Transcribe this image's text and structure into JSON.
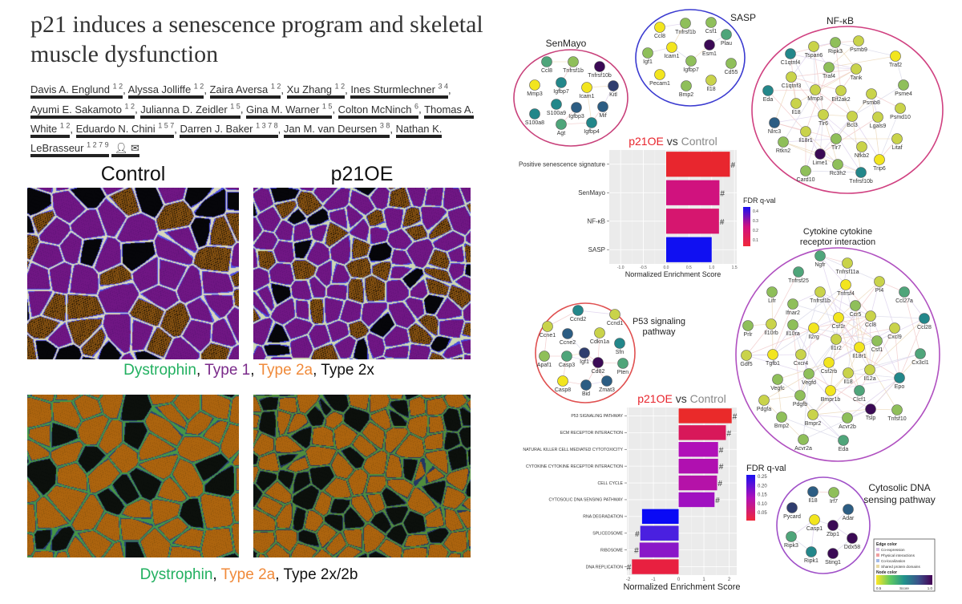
{
  "paper": {
    "title": "p21 induces a senescence program and skeletal muscle dysfunction",
    "authors": [
      {
        "name": "Davis A. Englund",
        "sup": "1 2"
      },
      {
        "name": "Alyssa Jolliffe",
        "sup": "1 2"
      },
      {
        "name": "Zaira Aversa",
        "sup": "1 2"
      },
      {
        "name": "Xu Zhang",
        "sup": "1 2"
      },
      {
        "name": "Ines Sturmlechner",
        "sup": "3 4"
      },
      {
        "name": "Ayumi E. Sakamoto",
        "sup": "1 2"
      },
      {
        "name": "Julianna D. Zeidler",
        "sup": "1 5"
      },
      {
        "name": "Gina M. Warner",
        "sup": "1 5"
      },
      {
        "name": "Colton McNinch",
        "sup": "6"
      },
      {
        "name": "Thomas A. White",
        "sup": "1 2"
      },
      {
        "name": "Eduardo N. Chini",
        "sup": "1 5 7"
      },
      {
        "name": "Darren J. Baker",
        "sup": "1 3 7 8"
      },
      {
        "name": "Jan M. van Deursen",
        "sup": "3 8"
      },
      {
        "name": "Nathan K. LeBrasseur",
        "sup": "1 2 7 9"
      }
    ],
    "author_icons": [
      "person-icon",
      "envelope-icon"
    ]
  },
  "micrographs": {
    "control_label": "Control",
    "p21oe_label": "p21OE",
    "legend_top": [
      {
        "text": "Dystrophin",
        "color": "#22b060"
      },
      {
        "text": ", ",
        "color": "#111"
      },
      {
        "text": "Type 1",
        "color": "#7a2a8a"
      },
      {
        "text": ", ",
        "color": "#111"
      },
      {
        "text": "Type 2a",
        "color": "#f08a3a"
      },
      {
        "text": ", Type 2x",
        "color": "#111"
      }
    ],
    "legend_bottom": [
      {
        "text": "Dystrophin",
        "color": "#22b060"
      },
      {
        "text": ", ",
        "color": "#111"
      },
      {
        "text": "Type 2a",
        "color": "#f08a3a"
      },
      {
        "text": ", Type 2x/2b",
        "color": "#111"
      }
    ]
  },
  "node_colors": {
    "Y": "#f2e51e",
    "YG": "#c9d34a",
    "LG": "#8fbf5a",
    "G": "#4fa57a",
    "T": "#23878a",
    "B": "#2c5d83",
    "N": "#2f3d6e",
    "P": "#3b0a55"
  },
  "networks": {
    "senmayo": {
      "title": "SenMayo",
      "ring": "#c8407a",
      "nodes": [
        [
          "Ccl8",
          "G"
        ],
        [
          "Tnfrsf1b",
          "LG"
        ],
        [
          "Tnfrsf10b",
          "P"
        ],
        [
          "Mmp3",
          "Y"
        ],
        [
          "Igfbp7",
          "T"
        ],
        [
          "Icam1",
          "Y"
        ],
        [
          "Kitl",
          "N"
        ],
        [
          "S100a9",
          "T"
        ],
        [
          "Igfbp3",
          "B"
        ],
        [
          "Mif",
          "B"
        ],
        [
          "S100a8",
          "T"
        ],
        [
          "Agt",
          "G"
        ],
        [
          "Igfbp4",
          "T"
        ]
      ]
    },
    "sasp": {
      "title": "SASP",
      "ring": "#3a3ad0",
      "nodes": [
        [
          "Ccl8",
          "Y"
        ],
        [
          "Tnfrsf1b",
          "LG"
        ],
        [
          "Csf1",
          "LG"
        ],
        [
          "Plau",
          "G"
        ],
        [
          "Esm1",
          "P"
        ],
        [
          "Icam1",
          "Y"
        ],
        [
          "Igf1",
          "LG"
        ],
        [
          "Igfbp7",
          "LG"
        ],
        [
          "Cd55",
          "LG"
        ],
        [
          "Pecam1",
          "Y"
        ],
        [
          "Il18",
          "YG"
        ],
        [
          "Bmp2",
          "LG"
        ]
      ]
    },
    "nfkb": {
      "title": "NF-κB",
      "ring": "#d04080",
      "nodes": [
        [
          "Tspan6",
          "YG"
        ],
        [
          "Ripk3",
          "LG"
        ],
        [
          "Psmb9",
          "YG"
        ],
        [
          "Traf2",
          "Y"
        ],
        [
          "C1qtnf4",
          "T"
        ],
        [
          "Traf4",
          "LG"
        ],
        [
          "Tank",
          "YG"
        ],
        [
          "C1qtnf3",
          "YG"
        ],
        [
          "Psme4",
          "LG"
        ],
        [
          "Eda",
          "T"
        ],
        [
          "Mmp3",
          "YG"
        ],
        [
          "Eif2ak2",
          "YG"
        ],
        [
          "Psmb8",
          "YG"
        ],
        [
          "Il18",
          "YG"
        ],
        [
          "Psmd10",
          "YG"
        ],
        [
          "Tlr6",
          "YG"
        ],
        [
          "Bcl3",
          "YG"
        ],
        [
          "Lgals9",
          "YG"
        ],
        [
          "Nlrc3",
          "B"
        ],
        [
          "Il18r1",
          "YG"
        ],
        [
          "Tlr7",
          "LG"
        ],
        [
          "Litaf",
          "YG"
        ],
        [
          "Rtkn2",
          "LG"
        ],
        [
          "Nfkb2",
          "YG"
        ],
        [
          "Lime1",
          "P"
        ],
        [
          "Trip6",
          "Y"
        ],
        [
          "Rc3h2",
          "LG"
        ],
        [
          "Card10",
          "LG"
        ],
        [
          "Tnfrsf10b",
          "T"
        ]
      ]
    },
    "p53": {
      "title": [
        "P53 signaling",
        "pathway"
      ],
      "ring": "#e05050",
      "nodes": [
        [
          "Ccnd2",
          "T"
        ],
        [
          "Ccnd1",
          "YG"
        ],
        [
          "Ccne1",
          "YG"
        ],
        [
          "Ccne2",
          "B"
        ],
        [
          "Cdkn1a",
          "YG"
        ],
        [
          "Sfn",
          "T"
        ],
        [
          "Igf1",
          "N"
        ],
        [
          "Apaf1",
          "LG"
        ],
        [
          "Casp3",
          "G"
        ],
        [
          "Cd82",
          "P"
        ],
        [
          "Pten",
          "G"
        ],
        [
          "Casp8",
          "Y"
        ],
        [
          "Bid",
          "B"
        ],
        [
          "Zmat3",
          "B"
        ]
      ]
    },
    "cytokine": {
      "title": [
        "Cytokine cytokine",
        "receptor interaction"
      ],
      "ring": "#b050c0",
      "nodes": [
        [
          "Ngfr",
          "G"
        ],
        [
          "Tnfrsf11a",
          "YG"
        ],
        [
          "Tnfrsf25",
          "G"
        ],
        [
          "Pf4",
          "YG"
        ],
        [
          "Tnfrsf4",
          "Y"
        ],
        [
          "Lifr",
          "LG"
        ],
        [
          "Tnfrsf1b",
          "YG"
        ],
        [
          "Ccl27a",
          "G"
        ],
        [
          "Ifnar2",
          "LG"
        ],
        [
          "Ccr5",
          "LG"
        ],
        [
          "Ccl8",
          "YG"
        ],
        [
          "Csf1r",
          "Y"
        ],
        [
          "Ccl28",
          "T"
        ],
        [
          "Prlr",
          "LG"
        ],
        [
          "Il10rb",
          "YG"
        ],
        [
          "Il10ra",
          "LG"
        ],
        [
          "Il2rg",
          "Y"
        ],
        [
          "Cxcl9",
          "YG"
        ],
        [
          "Il1r2",
          "YG"
        ],
        [
          "Csf1",
          "LG"
        ],
        [
          "Il18r1",
          "Y"
        ],
        [
          "Gdf5",
          "YG"
        ],
        [
          "Tgfb1",
          "Y"
        ],
        [
          "Cxcr4",
          "YG"
        ],
        [
          "Cx3cl1",
          "G"
        ],
        [
          "Csf2rb",
          "Y"
        ],
        [
          "Il12a",
          "YG"
        ],
        [
          "Vegfd",
          "LG"
        ],
        [
          "Il18",
          "YG"
        ],
        [
          "Vegfc",
          "LG"
        ],
        [
          "Epo",
          "T"
        ],
        [
          "Bmpr1b",
          "Y"
        ],
        [
          "Clcf1",
          "G"
        ],
        [
          "Pdgfb",
          "LG"
        ],
        [
          "Pdgfa",
          "YG"
        ],
        [
          "Tslp",
          "P"
        ],
        [
          "Tnfsf10",
          "LG"
        ],
        [
          "Bmp2",
          "LG"
        ],
        [
          "Bmpr2",
          "YG"
        ],
        [
          "Acvr2b",
          "LG"
        ],
        [
          "Acvr2a",
          "LG"
        ],
        [
          "Eda",
          "G"
        ]
      ]
    },
    "cytosolic": {
      "title": [
        "Cytosolic DNA",
        "sensing pathway"
      ],
      "ring": "#a050c8",
      "nodes": [
        [
          "Il18",
          "B"
        ],
        [
          "Irf7",
          "LG"
        ],
        [
          "Pycard",
          "N"
        ],
        [
          "Adar",
          "B"
        ],
        [
          "Casp1",
          "Y"
        ],
        [
          "Zbp1",
          "P"
        ],
        [
          "Ddx58",
          "P"
        ],
        [
          "Ripk3",
          "G"
        ],
        [
          "Ripk1",
          "T"
        ],
        [
          "Sting1",
          "P"
        ]
      ]
    }
  },
  "network_legend": {
    "edge_title": "Edge color",
    "edges": [
      {
        "label": "Co-expression",
        "color": "#d3bde3"
      },
      {
        "label": "Physical interactions",
        "color": "#f0a0a0"
      },
      {
        "label": "Co-localization",
        "color": "#a3bbe8"
      },
      {
        "label": "Shared protein domains",
        "color": "#e8d9a3"
      }
    ],
    "node_title": "Node color",
    "scale_min": "0.5",
    "scale_label": "Score",
    "scale_max": "1.0"
  },
  "chart_data": [
    {
      "type": "bar",
      "orientation": "horizontal",
      "title_parts": [
        {
          "text": "p21OE",
          "color": "#e8242c"
        },
        {
          "text": " vs ",
          "color": "#333"
        },
        {
          "text": "Control",
          "color": "#888"
        }
      ],
      "xlabel": "Normalized Enrichment Score",
      "xlim": [
        -1.25,
        1.55
      ],
      "xticks": [
        -1.0,
        -0.5,
        0.0,
        0.5,
        1.0,
        1.5
      ],
      "xtick_labels": [
        "-1.0",
        "-0.5",
        "0.0",
        "0.5",
        "1.0",
        "1.5"
      ],
      "categories": [
        "Positive senescence signature",
        "SenMayo",
        "NF-κB",
        "SASP"
      ],
      "values": [
        1.4,
        1.17,
        1.16,
        1.0
      ],
      "fdr": [
        0.02,
        0.17,
        0.15,
        0.42
      ],
      "significance_marks": [
        "#",
        "#",
        "#",
        ""
      ],
      "bar_colors": [
        "#e8262e",
        "#d0127e",
        "#d6166f",
        "#1010f2"
      ],
      "legend": {
        "title": "FDR q-val",
        "ticks": [
          "0.4",
          "0.3",
          "0.2",
          "0.1"
        ],
        "colors": [
          "#1a10f0",
          "#d01080",
          "#f0283a"
        ]
      },
      "grid": true
    },
    {
      "type": "bar",
      "orientation": "horizontal",
      "title_parts": [
        {
          "text": "p21OE",
          "color": "#e8242c"
        },
        {
          "text": " vs ",
          "color": "#333"
        },
        {
          "text": "Control",
          "color": "#888"
        }
      ],
      "xlabel": "Normalized Enrichment Score",
      "xlim": [
        -2.05,
        2.3
      ],
      "xticks": [
        -2,
        -1,
        0,
        1,
        2
      ],
      "xtick_labels": [
        "-2",
        "-1",
        "0",
        "1",
        "2"
      ],
      "categories": [
        "P53 SIGNALING PATHWAY",
        "ECM RECEPTOR INTERACTION",
        "NATURAL KILLER CELL MEDIATED CYTOTOXICITY",
        "CYTOKINE CYTOKINE RECEPTOR INTERACTION",
        "CELL CYCLE",
        "CYTOSOLIC DNA SENSING PATHWAY",
        "RNA DEGRADATION",
        "SPLICEOSOME",
        "RIBOSOME",
        "DNA REPLICATION"
      ],
      "values": [
        2.1,
        1.87,
        1.56,
        1.56,
        1.52,
        1.42,
        -1.45,
        -1.52,
        -1.55,
        -1.85
      ],
      "fdr": [
        0.01,
        0.06,
        0.14,
        0.14,
        0.13,
        0.16,
        0.25,
        0.21,
        0.17,
        0.04
      ],
      "significance_marks": [
        "#",
        "#",
        "#",
        "#",
        "#",
        "#",
        "",
        "#",
        "#",
        "#"
      ],
      "bar_colors": [
        "#ea2a2a",
        "#d8185a",
        "#b010b8",
        "#b010b0",
        "#b512a8",
        "#a010c0",
        "#0a0af5",
        "#4a20e0",
        "#8a18c8",
        "#e82040"
      ],
      "legend": {
        "title": "FDR q-val",
        "ticks": [
          "0.25",
          "0.20",
          "0.15",
          "0.10",
          "0.05"
        ],
        "colors": [
          "#1a10f0",
          "#b010b8",
          "#f0283a"
        ]
      },
      "grid": true
    }
  ]
}
